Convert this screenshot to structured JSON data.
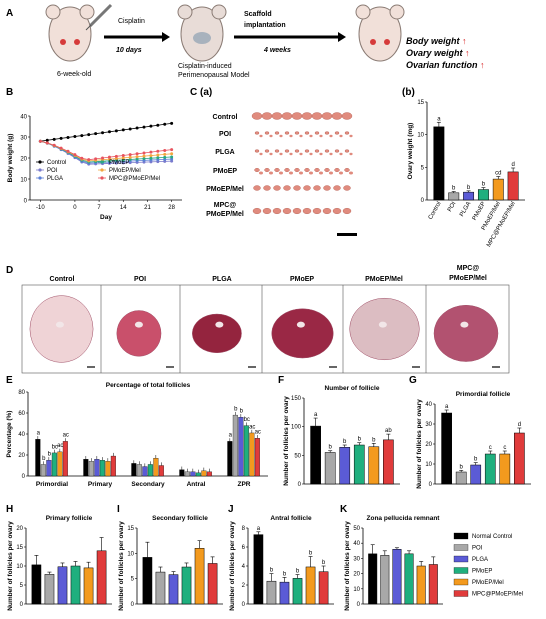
{
  "colors": {
    "groups": [
      "#000000",
      "#a8a8a8",
      "#5b5bd6",
      "#1faf7e",
      "#f39a1e",
      "#e03b3b"
    ],
    "line_markers": [
      "#000000",
      "#7a7acc",
      "#5b7fd6",
      "#2aa884",
      "#f2a640",
      "#e8545e"
    ],
    "histo_fill": [
      "#efd3d6",
      "#c9506b",
      "#94243e",
      "#9a2845",
      "#dcbdc2",
      "#b25270"
    ]
  },
  "groups": [
    "Normal Control",
    "POI",
    "PLGA",
    "PMoEP",
    "PMoEP/Mel",
    "MPC@PMoEP/Mel"
  ],
  "panels": {
    "a": {
      "label": "A",
      "age": "6-week-old",
      "drug": "Cisplatin",
      "interval1": "10 days",
      "step2_line1": "Scaffold",
      "step2_line2": "implantation",
      "interval2": "4 weeks",
      "model_line1": "Cisplatin-induced",
      "model_line2": "Perimenopausal  Model",
      "outcomes": [
        "Body weight ",
        "Ovary weight ",
        "Ovarian function "
      ],
      "up_arrow": "↑"
    },
    "b": {
      "label": "B"
    },
    "c": {
      "label": "C (a)",
      "rows": [
        "Control",
        "POI",
        "PLGA",
        "PMoEP",
        "PMoEP/Mel",
        "MPC@",
        "PMoEP/Mel"
      ]
    },
    "cb": {
      "label": "(b)"
    },
    "d": {
      "label": "D",
      "titles": [
        "Control",
        "POI",
        "PLGA",
        "PMoEP",
        "PMoEP/Mel",
        "MPC@",
        "PMoEP/Mel"
      ]
    },
    "e": {
      "label": "E"
    },
    "f": {
      "label": "F"
    },
    "g": {
      "label": "G"
    },
    "h": {
      "label": "H"
    },
    "i": {
      "label": "I"
    },
    "j": {
      "label": "J"
    },
    "k": {
      "label": "K"
    }
  },
  "chart_data": [
    {
      "id": "B",
      "type": "line",
      "xlabel": "Day",
      "ylabel": "Body weight (g)",
      "xticks": [
        -10,
        0,
        7,
        14,
        21,
        28
      ],
      "ylim": [
        0,
        40
      ],
      "yticks": [
        0,
        10,
        20,
        30,
        40
      ],
      "series": [
        {
          "name": "Control",
          "start": 28,
          "end": 36.5,
          "dip": 0
        },
        {
          "name": "POI",
          "start": 28,
          "end": 18.5,
          "dip": 17
        },
        {
          "name": "PLGA",
          "start": 28,
          "end": 19.5,
          "dip": 17.5
        },
        {
          "name": "PMoEP",
          "start": 28,
          "end": 20.5,
          "dip": 18
        },
        {
          "name": "PMoEP/Mel",
          "start": 28,
          "end": 22,
          "dip": 18.5
        },
        {
          "name": "MPC@PMoEP/Mel",
          "start": 28,
          "end": 24,
          "dip": 19
        }
      ],
      "legend": [
        "Control",
        "POI",
        "PLGA",
        "PMoEP",
        "PMoEP/Mel",
        "MPC@PMoEP/Mel"
      ]
    },
    {
      "id": "Cb",
      "type": "bar",
      "ylabel": "Ovary weight (mg)",
      "ylim": [
        0,
        15
      ],
      "yticks": [
        0,
        5,
        10,
        15
      ],
      "categories": [
        "Control",
        "POI",
        "PLGA",
        "PMoEP",
        "PMoEP/Mel",
        "MPC@PMoEP/Mel"
      ],
      "values": [
        11.2,
        1.1,
        1.2,
        1.6,
        3.2,
        4.3
      ],
      "errors": [
        0.7,
        0.2,
        0.2,
        0.3,
        0.4,
        0.6
      ],
      "letters": [
        "a",
        "b",
        "b",
        "b",
        "cd",
        "d"
      ]
    },
    {
      "id": "E",
      "type": "bar",
      "title": "Percentage of total follicles",
      "ylabel": "Percentage (%)",
      "ylim": [
        0,
        80
      ],
      "yticks": [
        0,
        20,
        40,
        60,
        80
      ],
      "categories": [
        "Primordial",
        "Primary",
        "Secondary",
        "Antral",
        "ZPR"
      ],
      "series": [
        {
          "name": "Normal Control",
          "values": [
            35,
            16,
            12,
            6,
            33
          ]
        },
        {
          "name": "POI",
          "values": [
            11,
            14,
            11,
            4,
            58
          ]
        },
        {
          "name": "PLGA",
          "values": [
            15,
            16,
            9,
            4,
            56
          ]
        },
        {
          "name": "PMoEP",
          "values": [
            22,
            15,
            11,
            3,
            48
          ]
        },
        {
          "name": "PMoEP/Mel",
          "values": [
            23,
            14,
            17,
            5,
            41
          ]
        },
        {
          "name": "MPC@PMoEP/Mel",
          "values": [
            33,
            19,
            10,
            4,
            36
          ]
        }
      ],
      "letters": [
        [
          "a",
          "b",
          "b",
          "bc",
          "ac",
          "ac"
        ],
        [],
        [],
        [],
        [
          "a",
          "b",
          "b",
          "bc",
          "ac",
          "ac"
        ]
      ]
    },
    {
      "id": "F",
      "type": "bar",
      "title": "Number of follicle",
      "ylabel": "Number of follicles per ovary",
      "ylim": [
        0,
        150
      ],
      "yticks": [
        0,
        50,
        100,
        150
      ],
      "values": [
        101,
        55,
        64,
        68,
        65,
        77
      ],
      "errors": [
        14,
        3,
        4,
        4,
        6,
        10
      ],
      "letters": [
        "a",
        "b",
        "b",
        "b",
        "b",
        "ab"
      ]
    },
    {
      "id": "G",
      "type": "bar",
      "title": "Primordial follicle",
      "ylabel": "Number of follicles per ovary",
      "ylim": [
        0,
        40
      ],
      "yticks": [
        0,
        10,
        20,
        30,
        40
      ],
      "values": [
        35.5,
        6,
        9.5,
        15,
        15,
        25.5
      ],
      "errors": [
        1.5,
        0.8,
        1.2,
        1.5,
        1.5,
        2.5
      ],
      "letters": [
        "a",
        "b",
        "b",
        "c",
        "c",
        "d"
      ]
    },
    {
      "id": "H",
      "type": "bar",
      "title": "Primary follicle",
      "ylabel": "Number of follicles per ovary",
      "ylim": [
        0,
        20
      ],
      "yticks": [
        0,
        5,
        10,
        15,
        20
      ],
      "values": [
        10.3,
        7.8,
        9.8,
        10,
        9.5,
        14
      ],
      "errors": [
        2.5,
        0.6,
        1,
        1.2,
        1.5,
        3.5
      ],
      "letters": []
    },
    {
      "id": "I",
      "type": "bar",
      "title": "Secondary follicle",
      "ylabel": "Number of follicles per ovary",
      "ylim": [
        0,
        15
      ],
      "yticks": [
        0,
        5,
        10,
        15
      ],
      "values": [
        9.2,
        6.3,
        5.8,
        7.3,
        11,
        8
      ],
      "errors": [
        3,
        1,
        0.6,
        0.8,
        1.5,
        1.3
      ],
      "letters": []
    },
    {
      "id": "J",
      "type": "bar",
      "title": "Antral follicle",
      "ylabel": "Number of follicles per ovary",
      "ylim": [
        0,
        8
      ],
      "yticks": [
        0,
        2,
        4,
        6,
        8
      ],
      "values": [
        7.3,
        2.4,
        2.3,
        2.7,
        3.9,
        3.4
      ],
      "errors": [
        0.3,
        0.8,
        0.5,
        0.4,
        1.1,
        0.6
      ],
      "letters": [
        "a",
        "b",
        "b",
        "b",
        "b",
        "b"
      ]
    },
    {
      "id": "K",
      "type": "bar",
      "title": "Zona pellucida remnant",
      "ylabel": "Number of follicles per ovary",
      "ylim": [
        0,
        50
      ],
      "yticks": [
        0,
        10,
        20,
        30,
        40,
        50
      ],
      "values": [
        33,
        32,
        36,
        33,
        25,
        26
      ],
      "errors": [
        6,
        3,
        1,
        2,
        3,
        5
      ],
      "letters": []
    }
  ]
}
